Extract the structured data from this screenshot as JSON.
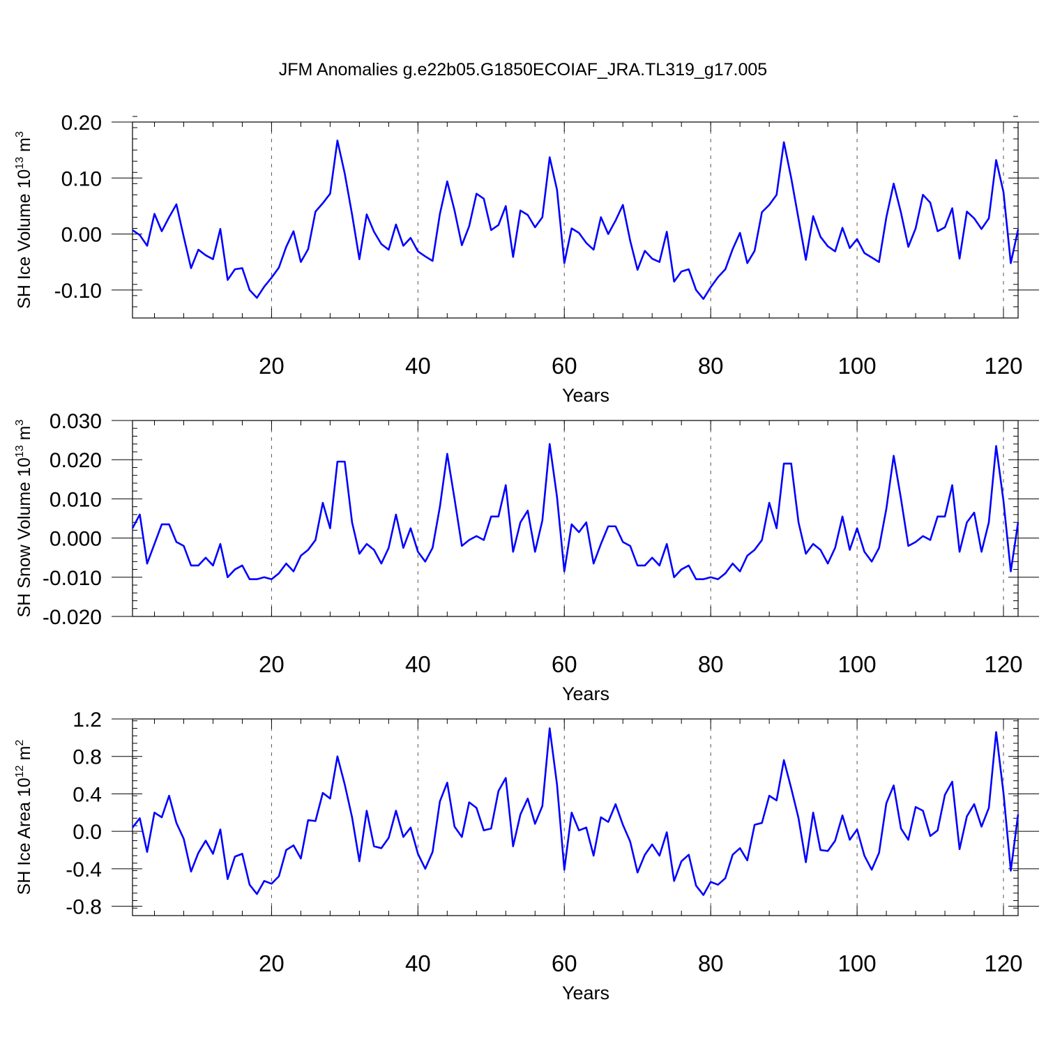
{
  "figure_title": "JFM Anomalies g.e22b05.G1850ECOIAF_JRA.TL319_g17.005",
  "colors": {
    "line": "#0000ff",
    "axis": "#000000",
    "grid": "#555555",
    "background": "#ffffff"
  },
  "chart_data": [
    {
      "type": "line",
      "name": "sh-ice-volume",
      "title": "JFM Anomalies g.e22b05.G1850ECOIAF_JRA.TL319_g17.005",
      "ylabel_main": "SH Ice Volume 10",
      "ylabel_sup": "13",
      "ylabel_tail": " m",
      "ylabel_unit_sup": "3",
      "xlabel": "Years",
      "xlim": [
        1,
        122
      ],
      "ylim": [
        -0.15,
        0.2
      ],
      "xticks": [
        20,
        40,
        60,
        80,
        100,
        120
      ],
      "xtick_labels": [
        "20",
        "40",
        "60",
        "80",
        "100",
        "120"
      ],
      "yticks": [
        -0.1,
        0.0,
        0.1,
        0.2
      ],
      "ytick_labels": [
        "-0.10",
        "0.00",
        "0.10",
        "0.20"
      ],
      "y_minor_step": 0.02,
      "x_minor_step": 4,
      "grid": "vertical-dashed",
      "series": [
        {
          "name": "SH Ice Volume",
          "values": [
            0.007,
            -0.002,
            -0.021,
            0.036,
            0.005,
            0.03,
            0.053,
            -0.005,
            -0.061,
            -0.028,
            -0.038,
            -0.045,
            0.009,
            -0.082,
            -0.063,
            -0.061,
            -0.1,
            -0.114,
            -0.094,
            -0.078,
            -0.06,
            -0.023,
            0.005,
            -0.05,
            -0.027,
            0.04,
            0.055,
            0.072,
            0.167,
            0.108,
            0.035,
            -0.045,
            0.035,
            0.004,
            -0.018,
            -0.028,
            0.017,
            -0.021,
            -0.007,
            -0.031,
            -0.04,
            -0.048,
            0.036,
            0.094,
            0.042,
            -0.02,
            0.014,
            0.072,
            0.063,
            0.007,
            0.016,
            0.05,
            -0.041,
            0.042,
            0.034,
            0.012,
            0.03,
            0.137,
            0.079,
            -0.052,
            0.01,
            0.002,
            -0.016,
            -0.028,
            0.03,
            0.0,
            0.024,
            0.052,
            -0.012,
            -0.064,
            -0.03,
            -0.044,
            -0.05,
            0.004,
            -0.085,
            -0.067,
            -0.063,
            -0.1,
            -0.116,
            -0.095,
            -0.077,
            -0.063,
            -0.027,
            0.002,
            -0.052,
            -0.03,
            0.039,
            0.052,
            0.07,
            0.164,
            0.1,
            0.027,
            -0.046,
            0.032,
            -0.005,
            -0.022,
            -0.031,
            0.011,
            -0.025,
            -0.009,
            -0.034,
            -0.042,
            -0.05,
            0.03,
            0.09,
            0.038,
            -0.023,
            0.01,
            0.07,
            0.056,
            0.005,
            0.012,
            0.046,
            -0.044,
            0.04,
            0.028,
            0.009,
            0.028,
            0.132,
            0.075,
            -0.052,
            0.008
          ]
        }
      ]
    },
    {
      "type": "line",
      "name": "sh-snow-volume",
      "ylabel_main": "SH Snow Volume 10",
      "ylabel_sup": "13",
      "ylabel_tail": " m",
      "ylabel_unit_sup": "3",
      "xlabel": "Years",
      "xlim": [
        1,
        122
      ],
      "ylim": [
        -0.02,
        0.03
      ],
      "xticks": [
        20,
        40,
        60,
        80,
        100,
        120
      ],
      "xtick_labels": [
        "20",
        "40",
        "60",
        "80",
        "100",
        "120"
      ],
      "yticks": [
        -0.02,
        -0.01,
        0.0,
        0.01,
        0.02,
        0.03
      ],
      "ytick_labels": [
        "-0.020",
        "-0.010",
        "0.000",
        "0.010",
        "0.020",
        "0.030"
      ],
      "y_minor_step": 0.002,
      "x_minor_step": 4,
      "grid": "vertical-dashed",
      "series": [
        {
          "name": "SH Snow Volume",
          "values": [
            0.0025,
            0.006,
            -0.0065,
            -0.0015,
            0.0035,
            0.0035,
            -0.001,
            -0.002,
            -0.007,
            -0.007,
            -0.005,
            -0.007,
            -0.0015,
            -0.01,
            -0.008,
            -0.007,
            -0.0105,
            -0.0105,
            -0.01,
            -0.0105,
            -0.009,
            -0.0065,
            -0.0085,
            -0.0045,
            -0.003,
            -0.0005,
            0.009,
            0.0025,
            0.0195,
            0.0195,
            0.004,
            -0.004,
            -0.0015,
            -0.003,
            -0.0065,
            -0.0025,
            0.006,
            -0.0025,
            0.0025,
            -0.0035,
            -0.006,
            -0.0025,
            0.008,
            0.0215,
            0.01,
            -0.002,
            -0.0005,
            0.0005,
            -0.0005,
            0.0055,
            0.0055,
            0.0135,
            -0.0035,
            0.004,
            0.007,
            -0.0035,
            0.0045,
            0.024,
            0.0105,
            -0.0085,
            0.0035,
            0.0015,
            0.004,
            -0.0065,
            -0.0015,
            0.003,
            0.003,
            -0.001,
            -0.002,
            -0.007,
            -0.007,
            -0.005,
            -0.007,
            -0.0015,
            -0.01,
            -0.008,
            -0.007,
            -0.0105,
            -0.0105,
            -0.01,
            -0.0105,
            -0.009,
            -0.0065,
            -0.0085,
            -0.0045,
            -0.003,
            -0.0005,
            0.009,
            0.0025,
            0.019,
            0.019,
            0.004,
            -0.004,
            -0.0015,
            -0.003,
            -0.0065,
            -0.0025,
            0.0055,
            -0.003,
            0.0025,
            -0.0035,
            -0.006,
            -0.0025,
            0.0075,
            0.021,
            0.01,
            -0.002,
            -0.001,
            0.0005,
            -0.0005,
            0.0055,
            0.0055,
            0.0135,
            -0.0035,
            0.004,
            0.0065,
            -0.0035,
            0.004,
            0.0235,
            0.0095,
            -0.0085,
            0.004
          ]
        }
      ]
    },
    {
      "type": "line",
      "name": "sh-ice-area",
      "ylabel_main": "SH Ice Area 10",
      "ylabel_sup": "12",
      "ylabel_tail": " m",
      "ylabel_unit_sup": "2",
      "xlabel": "Years",
      "xlim": [
        1,
        122
      ],
      "ylim": [
        -0.9,
        1.2
      ],
      "xticks": [
        20,
        40,
        60,
        80,
        100,
        120
      ],
      "xtick_labels": [
        "20",
        "40",
        "60",
        "80",
        "100",
        "120"
      ],
      "yticks": [
        -0.8,
        -0.4,
        0.0,
        0.4,
        0.8,
        1.2
      ],
      "ytick_labels": [
        "-0.8",
        "-0.4",
        "0.0",
        "0.4",
        "0.8",
        "1.2"
      ],
      "y_minor_step": 0.08,
      "x_minor_step": 4,
      "grid": "vertical-dashed",
      "series": [
        {
          "name": "SH Ice Area",
          "values": [
            0.04,
            0.14,
            -0.22,
            0.2,
            0.15,
            0.38,
            0.09,
            -0.08,
            -0.43,
            -0.23,
            -0.1,
            -0.24,
            0.02,
            -0.51,
            -0.27,
            -0.24,
            -0.57,
            -0.67,
            -0.53,
            -0.56,
            -0.48,
            -0.2,
            -0.15,
            -0.29,
            0.12,
            0.11,
            0.41,
            0.35,
            0.8,
            0.5,
            0.15,
            -0.32,
            0.22,
            -0.16,
            -0.18,
            -0.07,
            0.22,
            -0.06,
            0.04,
            -0.24,
            -0.4,
            -0.22,
            0.32,
            0.52,
            0.05,
            -0.06,
            0.31,
            0.25,
            0.01,
            0.03,
            0.43,
            0.57,
            -0.16,
            0.18,
            0.35,
            0.08,
            0.27,
            1.1,
            0.5,
            -0.41,
            0.2,
            0.01,
            0.04,
            -0.26,
            0.15,
            0.1,
            0.29,
            0.07,
            -0.11,
            -0.44,
            -0.25,
            -0.14,
            -0.26,
            -0.01,
            -0.53,
            -0.32,
            -0.25,
            -0.58,
            -0.68,
            -0.54,
            -0.57,
            -0.5,
            -0.25,
            -0.18,
            -0.31,
            0.07,
            0.09,
            0.38,
            0.33,
            0.76,
            0.46,
            0.14,
            -0.33,
            0.2,
            -0.2,
            -0.21,
            -0.1,
            0.17,
            -0.09,
            0.02,
            -0.26,
            -0.41,
            -0.23,
            0.3,
            0.49,
            0.03,
            -0.09,
            0.26,
            0.22,
            -0.05,
            0.01,
            0.39,
            0.53,
            -0.19,
            0.16,
            0.29,
            0.05,
            0.25,
            1.06,
            0.41,
            -0.42,
            0.18
          ]
        }
      ]
    }
  ]
}
